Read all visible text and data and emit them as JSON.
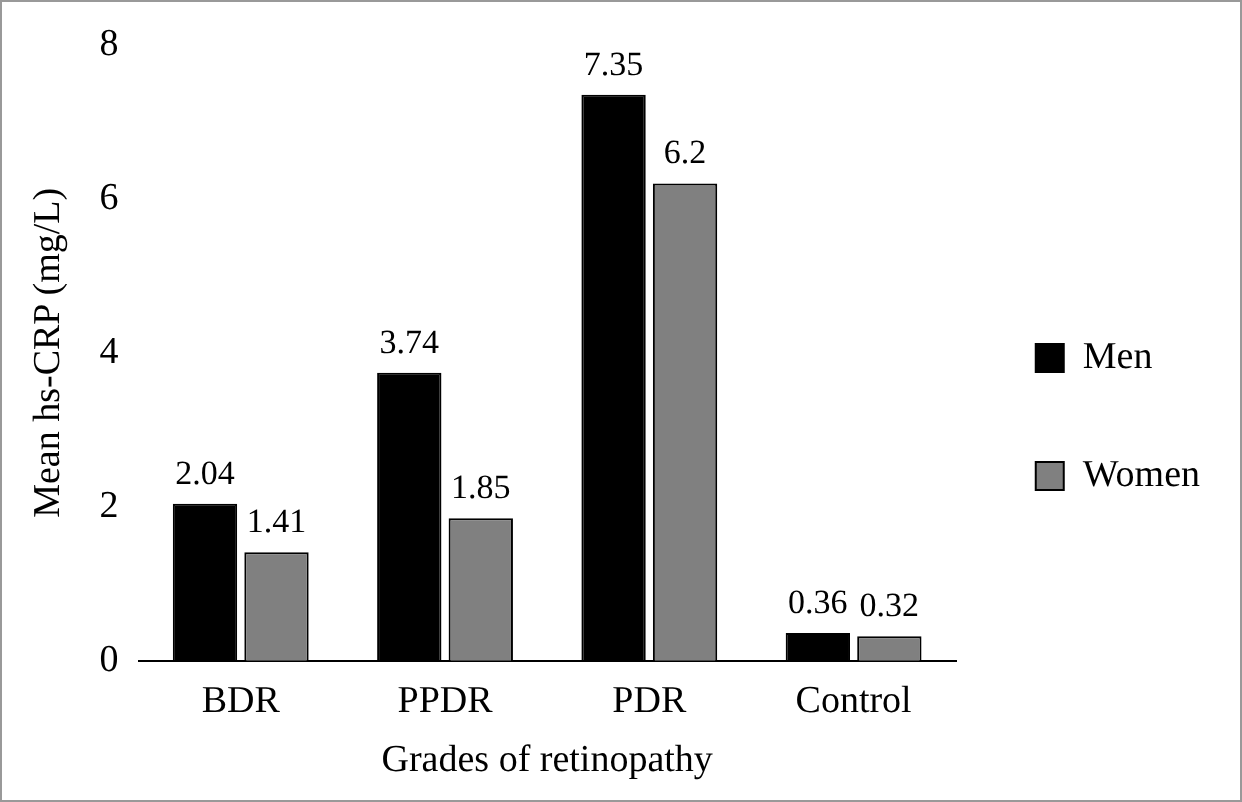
{
  "chart_data": {
    "type": "bar",
    "xlabel": "Grades of retinopathy",
    "ylabel": "Mean hs-CRP (mg/L)",
    "categories": [
      "BDR",
      "PPDR",
      "PDR",
      "Control"
    ],
    "series": [
      {
        "name": "Men",
        "color": "#000000",
        "values": [
          2.04,
          3.74,
          7.35,
          0.36
        ]
      },
      {
        "name": "Women",
        "color": "#808080",
        "values": [
          1.41,
          1.85,
          6.2,
          0.32
        ]
      }
    ],
    "ylim": [
      0,
      8
    ],
    "yticks": [
      0,
      2,
      4,
      6,
      8
    ],
    "grid": false,
    "legend": "right",
    "data_labels": true
  }
}
